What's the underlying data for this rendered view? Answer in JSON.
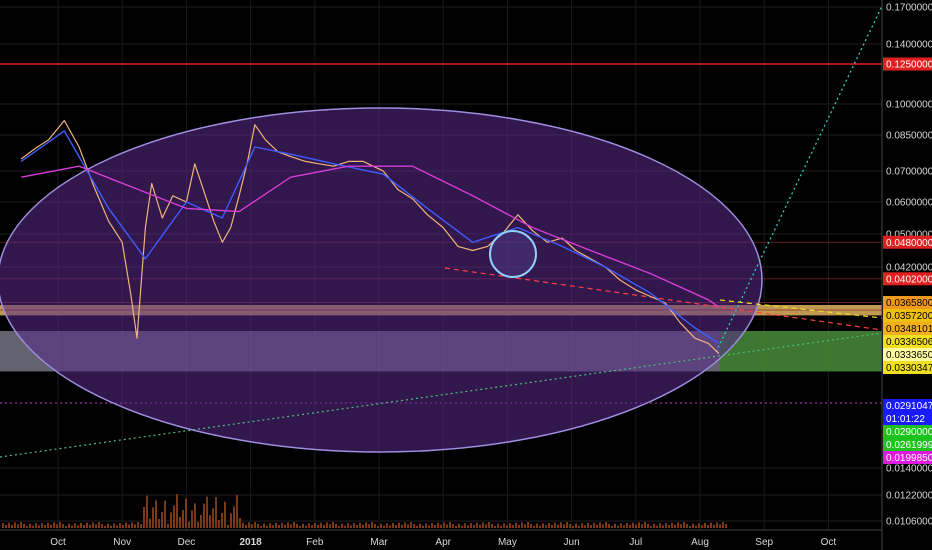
{
  "colors": {
    "background": "#000000",
    "ellipse_fill": "#5a2a8a",
    "ellipse_stroke": "#9f8de0",
    "price_line": "#f0b37a",
    "ma_fast": "#3f5cff",
    "ma_slow": "#d63cd6",
    "resistance_band": "#d4a85a",
    "support_band": "#b3b3c8",
    "target_zone": "#3b7a2a",
    "trend_dotted": "#4fbf7f",
    "red_line": "#e02020"
  },
  "chart_data": {
    "type": "line",
    "title": "",
    "xlabel": "",
    "ylabel": "",
    "ylim": [
      0.0095,
      0.172
    ],
    "x_ticks": [
      "Oct",
      "Nov",
      "Dec",
      "2018",
      "Feb",
      "Mar",
      "Apr",
      "May",
      "Jun",
      "Jul",
      "Aug",
      "Sep",
      "Oct"
    ],
    "y_ticks": [
      "0.17000000",
      "0.14000000",
      "0.10000000",
      "0.08500000",
      "0.07000000",
      "0.06000000",
      "0.05000000",
      "0.04200000",
      "0.01400000",
      "0.01220000",
      "0.01060000"
    ],
    "series": [
      {
        "x": [
          "Sep 14",
          "Sep 20",
          "Sep 27",
          "Oct 4",
          "Oct 11",
          "Oct 18",
          "Oct 25",
          "Nov 1",
          "Nov 5",
          "Nov 8",
          "Nov 12",
          "Nov 15",
          "Nov 20",
          "Nov 25",
          "Dec 1",
          "Dec 5",
          "Dec 10",
          "Dec 14",
          "Dec 18",
          "Dec 22",
          "Dec 26",
          "Dec 30",
          "Jan 3",
          "Jan 8",
          "Jan 14",
          "Jan 20",
          "Jan 27",
          "Feb 3",
          "Feb 10",
          "Feb 17",
          "Feb 24",
          "Mar 3",
          "Mar 10",
          "Mar 17",
          "Mar 24",
          "Apr 1",
          "Apr 8",
          "Apr 15",
          "Apr 22",
          "Apr 29",
          "May 6",
          "May 13",
          "May 20",
          "May 27",
          "Jun 3",
          "Jun 10",
          "Jun 17",
          "Jun 24",
          "Jul 1",
          "Jul 8",
          "Jul 15",
          "Jul 22",
          "Jul 29",
          "Aug 5",
          "Aug 10"
        ],
        "values": [
          0.075,
          0.079,
          0.083,
          0.092,
          0.08,
          0.065,
          0.054,
          0.048,
          0.038,
          0.033,
          0.052,
          0.066,
          0.055,
          0.062,
          0.06,
          0.073,
          0.062,
          0.054,
          0.048,
          0.052,
          0.062,
          0.074,
          0.09,
          0.083,
          0.078,
          0.076,
          0.074,
          0.073,
          0.072,
          0.074,
          0.074,
          0.07,
          0.064,
          0.061,
          0.056,
          0.052,
          0.047,
          0.046,
          0.047,
          0.05,
          0.056,
          0.051,
          0.048,
          0.049,
          0.046,
          0.044,
          0.042,
          0.04,
          0.0385,
          0.0375,
          0.0365,
          0.0345,
          0.033,
          0.0325,
          0.0315
        ]
      },
      {
        "x": [
          "Sep 14",
          "Oct 4",
          "Oct 25",
          "Nov 12",
          "Dec 1",
          "Dec 18",
          "Jan 3",
          "Jan 20",
          "Feb 10",
          "Mar 3",
          "Mar 24",
          "Apr 15",
          "May 6",
          "May 27",
          "Jun 17",
          "Jul 8",
          "Jul 29",
          "Aug 10"
        ],
        "values": [
          0.074,
          0.087,
          0.058,
          0.044,
          0.06,
          0.055,
          0.08,
          0.077,
          0.073,
          0.069,
          0.058,
          0.048,
          0.052,
          0.047,
          0.042,
          0.038,
          0.034,
          0.0325
        ]
      },
      {
        "x": [
          "Sep 14",
          "Oct 11",
          "Nov 5",
          "Dec 1",
          "Dec 26",
          "Jan 20",
          "Feb 17",
          "Mar 17",
          "Apr 15",
          "May 13",
          "Jun 10",
          "Jul 8",
          "Aug 5",
          "Aug 10"
        ],
        "values": [
          0.068,
          0.072,
          0.065,
          0.058,
          0.057,
          0.068,
          0.072,
          0.072,
          0.062,
          0.052,
          0.046,
          0.041,
          0.037,
          0.036
        ]
      }
    ],
    "price_tags": [
      {
        "label": "0.12500000",
        "value": 0.125,
        "color": "#e02020",
        "text_color": "#ffffff"
      },
      {
        "label": "0.04800000",
        "value": 0.048,
        "color": "#e02020",
        "text_color": "#ffffff"
      },
      {
        "label": "0.04020000",
        "value": 0.0402,
        "color": "#e02020",
        "text_color": "#ffffff"
      },
      {
        "label": "0.03658000",
        "value": 0.03658,
        "color": "#f39a1c",
        "text_color": "#000000"
      },
      {
        "label": "0.03572000",
        "value": 0.03572,
        "color": "#f0c010",
        "text_color": "#000000"
      },
      {
        "label": "0.03481015",
        "value": 0.03481015,
        "color": "#f3b01c",
        "text_color": "#000000"
      },
      {
        "label": "0.03365065",
        "value": 0.03365065,
        "color": "#f0e020",
        "text_color": "#000000"
      },
      {
        "label": "0.03336505",
        "value": 0.03336505,
        "color": "#ffffa0",
        "text_color": "#000000"
      },
      {
        "label": "0.03303475",
        "value": 0.03303475,
        "color": "#f0e020",
        "text_color": "#000000"
      },
      {
        "label": "0.02910474",
        "value": 0.02910474,
        "color": "#1a1aff",
        "text_color": "#ffffff"
      },
      {
        "label": "01:01:22",
        "value": 0.0287,
        "color": "#1a1aff",
        "text_color": "#ffffff"
      },
      {
        "label": "0.02900000",
        "value": 0.029,
        "color": "#1ec41e",
        "text_color": "#ffffff"
      },
      {
        "label": "0.02619999",
        "value": 0.0262,
        "color": "#1ec41e",
        "text_color": "#ffffff"
      },
      {
        "label": "0.01998500",
        "value": 0.019985,
        "color": "#e01ae0",
        "text_color": "#ffffff"
      }
    ],
    "annotations": {
      "resistance_band": [
        0.0352,
        0.0362
      ],
      "support_band": [
        0.0322,
        0.0337
      ],
      "target_zone": [
        0.0322,
        0.0337
      ],
      "horizontal_level": 0.125
    },
    "grid": true,
    "legend": "none"
  }
}
